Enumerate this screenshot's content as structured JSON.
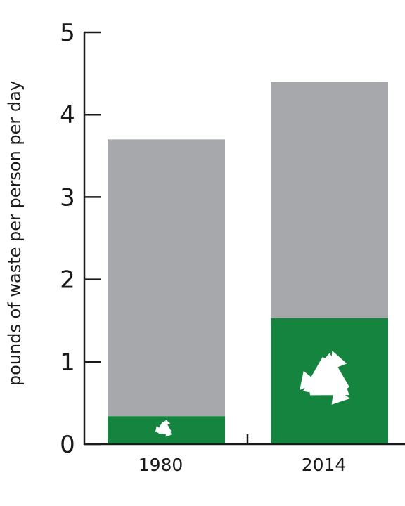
{
  "chart_data": {
    "type": "bar",
    "stacked": true,
    "categories": [
      "1980",
      "2014"
    ],
    "series": [
      {
        "color": "#15843f",
        "icon": "recycle-icon",
        "values": [
          0.34,
          1.53
        ]
      },
      {
        "color": "#a7a8ab",
        "values": [
          3.36,
          2.87
        ]
      }
    ],
    "totals": [
      3.7,
      4.4
    ],
    "ylabel": "pounds of waste per person per day",
    "ylim": [
      0,
      5
    ],
    "yticks": [
      "0",
      "1",
      "2",
      "3",
      "4",
      "5"
    ],
    "grid": false,
    "legend": "none"
  }
}
